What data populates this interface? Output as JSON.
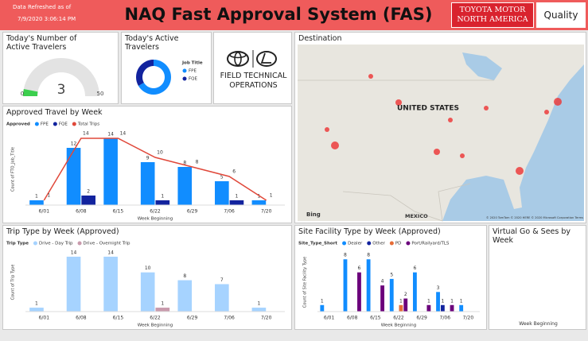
{
  "header": {
    "refresh_label": "Data Refreshed as of",
    "refresh_time": "7/9/2020 3:06:14 PM",
    "title": "NAQ Fast Approval System (FAS)",
    "brand": "TOYOTA MOTOR NORTH AMERICA",
    "brand_tag": "Quality"
  },
  "logo": {
    "text": "FIELD TECHNICAL OPERATIONS"
  },
  "map": {
    "title": "Destination",
    "country_label": "UNITED STATES",
    "neighbor_label": "MEXICO",
    "provider": "Bing",
    "attribution": "© 2020 TomTom © 2020 HERE © 2020 Microsoft Corporation Terms"
  },
  "virtual_panel": {
    "title": "Virtual Go & Sees by Week",
    "x_label": "Week Beginning"
  },
  "chart_data": [
    {
      "type": "gauge",
      "title": "Today's Number of Active Travelers",
      "value": 3,
      "color": "#3ccf4e",
      "ylim": [
        0,
        50
      ],
      "yticks": [
        0,
        50
      ]
    },
    {
      "type": "pie",
      "donut": true,
      "title": "Today's Active Travelers",
      "legend_title": "Job Title",
      "categories": [
        "FPE",
        "FQE"
      ],
      "values": [
        2,
        1
      ],
      "colors": [
        "#118DFF",
        "#12239E"
      ]
    },
    {
      "type": "bar",
      "title": "Approved Travel by Week",
      "legend_title": "Approved",
      "x_label": "Week Beginning",
      "y_label": "Count of FTO_Job_Title",
      "categories": [
        "6/01",
        "6/08",
        "6/15",
        "6/22",
        "6/29",
        "7/06",
        "7/20"
      ],
      "series": [
        {
          "name": "FPE",
          "color": "#118DFF",
          "values": [
            1,
            12,
            14,
            9,
            8,
            5,
            1
          ]
        },
        {
          "name": "FQE",
          "color": "#12239E",
          "values": [
            null,
            2,
            null,
            1,
            null,
            1,
            null
          ]
        },
        {
          "name": "Total Trips",
          "type": "line",
          "color": "#E0483A",
          "values": [
            1,
            14,
            14,
            10,
            8,
            6,
            1
          ]
        }
      ],
      "ylim": [
        0,
        15
      ]
    },
    {
      "type": "bar",
      "title": "Trip Type by Week (Approved)",
      "legend_title": "Trip Type",
      "x_label": "Week Beginning",
      "y_label": "Count of Trip Type",
      "categories": [
        "6/01",
        "6/08",
        "6/15",
        "6/22",
        "6/29",
        "7/06",
        "7/20"
      ],
      "series": [
        {
          "name": "Drive - Day Trip",
          "color": "#A6D3FF",
          "values": [
            1,
            14,
            14,
            10,
            8,
            7,
            1
          ]
        },
        {
          "name": "Drive - Overnight Trip",
          "color": "#C99AAC",
          "values": [
            null,
            null,
            null,
            1,
            null,
            null,
            null
          ]
        }
      ],
      "ylim": [
        0,
        15
      ]
    },
    {
      "type": "bar",
      "title": "Site Facility Type by Week (Approved)",
      "legend_title": "Site_Type_Short",
      "x_label": "Week Beginning",
      "y_label": "Count of Site Facility Type",
      "categories": [
        "6/01",
        "6/08",
        "6/15",
        "6/22",
        "6/29",
        "7/06",
        "7/20"
      ],
      "series": [
        {
          "name": "Dealer",
          "color": "#118DFF",
          "values": [
            1,
            8,
            8,
            5,
            6,
            3,
            1
          ]
        },
        {
          "name": "Other",
          "color": "#12239E",
          "values": [
            null,
            null,
            null,
            null,
            null,
            1,
            null
          ]
        },
        {
          "name": "PD",
          "color": "#E66C37",
          "values": [
            null,
            null,
            null,
            1,
            null,
            null,
            null
          ]
        },
        {
          "name": "Port/Railyard/TLS",
          "color": "#6B007B",
          "values": [
            null,
            6,
            4,
            2,
            1,
            1,
            null
          ]
        }
      ],
      "ylim": [
        0,
        9
      ]
    }
  ]
}
